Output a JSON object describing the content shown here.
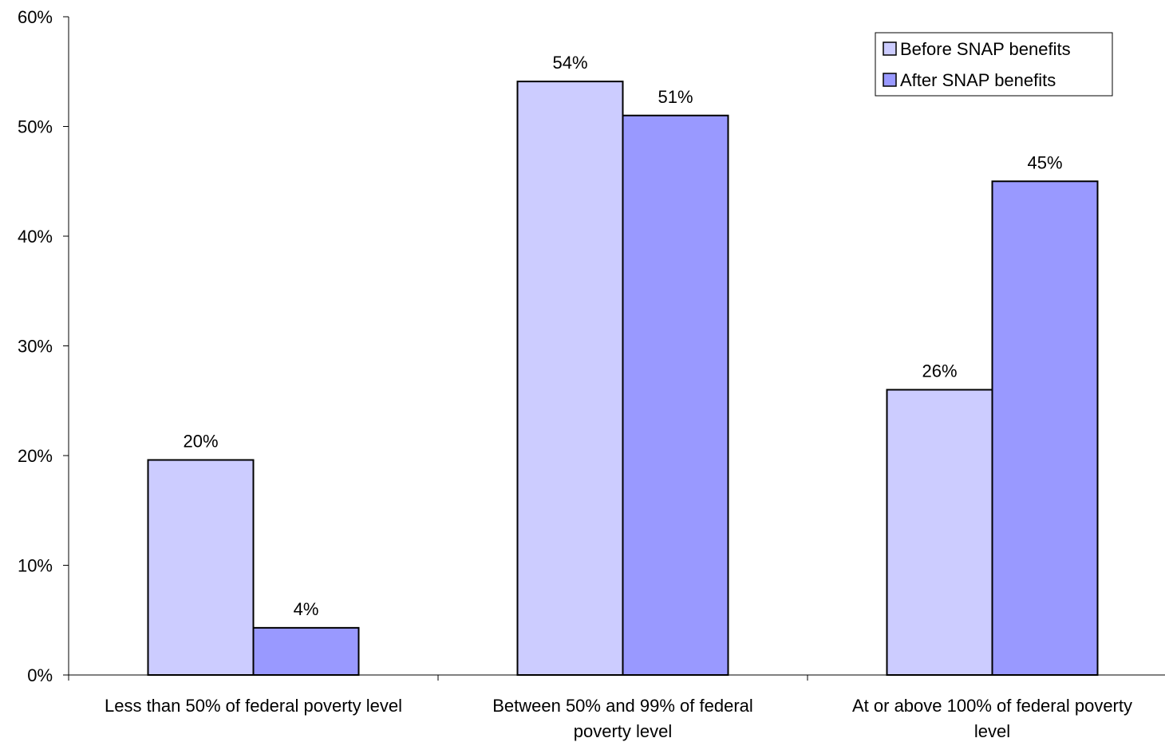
{
  "chart_data": {
    "type": "bar",
    "categories": [
      "Less than 50% of federal poverty level",
      "Between 50% and 99% of federal poverty level",
      "At or above 100% of federal poverty level"
    ],
    "category_label_lines": [
      [
        "Less than 50% of federal poverty level"
      ],
      [
        "Between 50% and 99% of federal",
        "poverty level"
      ],
      [
        "At or above 100% of federal poverty",
        "level"
      ]
    ],
    "series": [
      {
        "name": "Before SNAP benefits",
        "values": [
          19.6,
          54.1,
          26.0
        ],
        "labels": [
          "20%",
          "54%",
          "26%"
        ],
        "color": "#ccccff"
      },
      {
        "name": "After SNAP benefits",
        "values": [
          4.3,
          51.0,
          45.0
        ],
        "labels": [
          "4%",
          "51%",
          "45%"
        ],
        "color": "#9999ff"
      }
    ],
    "y_ticks": [
      0,
      10,
      20,
      30,
      40,
      50,
      60
    ],
    "y_tick_labels": [
      "0%",
      "10%",
      "20%",
      "30%",
      "40%",
      "50%",
      "60%"
    ],
    "ylim": [
      0,
      60
    ],
    "title": "",
    "xlabel": "",
    "ylabel": "",
    "grid": false,
    "legend_position": "top-right"
  }
}
